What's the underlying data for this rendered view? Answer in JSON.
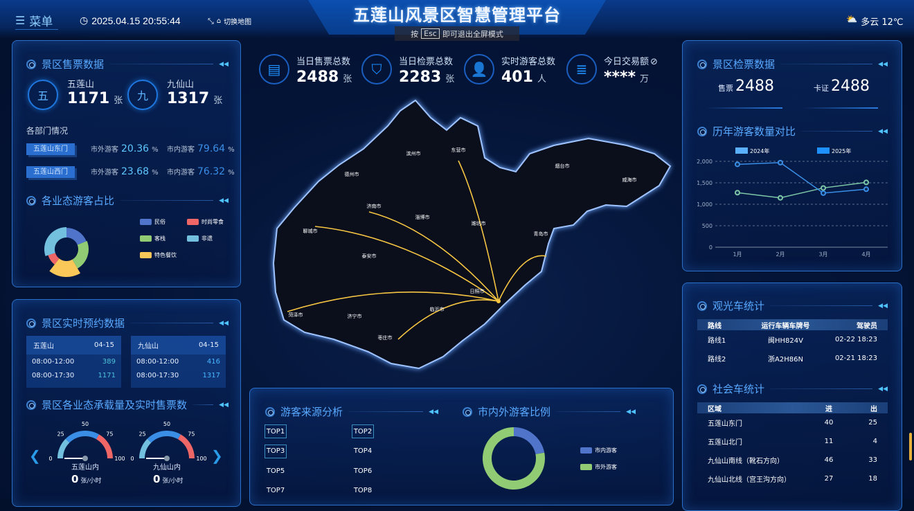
{
  "header": {
    "menu": "菜单",
    "datetime": "2025.04.15 20:55:44",
    "switch_map": "切换地图",
    "title": "五莲山风景区智慧管理平台",
    "esc_prefix": "按",
    "esc_key": "Esc",
    "esc_suffix": "即可退出全屏模式",
    "weather": "多云 12℃",
    "icons": [
      "menu-icon",
      "clock-icon",
      "shrink-icon",
      "map-icon",
      "cloudy-sun-icon"
    ]
  },
  "ticket_sales": {
    "title": "景区售票数据",
    "items": [
      {
        "badge": "五",
        "name": "五莲山",
        "value": "1171",
        "unit": "张"
      },
      {
        "badge": "九",
        "name": "九仙山",
        "value": "1317",
        "unit": "张"
      }
    ],
    "dept_title": "各部门情况",
    "depts": [
      {
        "name": "五莲山东门",
        "out_label": "市外游客",
        "out": "20.36",
        "in_label": "市内游客",
        "in": "79.64",
        "pct": "%"
      },
      {
        "name": "五莲山西门",
        "out_label": "市外游客",
        "out": "23.68",
        "in_label": "市内游客",
        "in": "76.32",
        "pct": "%"
      }
    ]
  },
  "business_share": {
    "title": "各业态游客占比",
    "chart_data": {
      "type": "pie",
      "rose": true,
      "series": [
        {
          "name": "民俗",
          "color": "#4f74c9"
        },
        {
          "name": "时尚零食",
          "color": "#ee6666"
        },
        {
          "name": "客栈",
          "color": "#91cc75"
        },
        {
          "name": "非遗",
          "color": "#73c0de"
        },
        {
          "name": "特色餐饮",
          "color": "#fac858"
        }
      ]
    }
  },
  "reservation": {
    "title": "景区实时预约数据",
    "tables": [
      {
        "name": "五莲山",
        "date": "04-15",
        "rows": [
          {
            "time": "08:00-12:00",
            "value": "389"
          },
          {
            "time": "08:00-17:30",
            "value": "1171"
          }
        ]
      },
      {
        "name": "九仙山",
        "date": "04-15",
        "rows": [
          {
            "time": "08:00-12:00",
            "value": "416"
          },
          {
            "time": "08:00-17:30",
            "value": "1317"
          }
        ]
      }
    ]
  },
  "capacity": {
    "title": "景区各业态承载量及实时售票数",
    "gauges": [
      {
        "name": "五莲山内",
        "value": "0",
        "unit": "张/小时"
      },
      {
        "name": "九仙山内",
        "value": "0",
        "unit": "张/小时"
      }
    ],
    "ticks": [
      "0",
      "25",
      "50",
      "75",
      "100"
    ],
    "colors": {
      "low": "#73c0de",
      "mid": "#3a8ee6",
      "high": "#ee6666"
    }
  },
  "kpis": [
    {
      "icon": "ticket-icon",
      "label": "当日售票总数",
      "value": "2488",
      "unit": "张"
    },
    {
      "icon": "gate-check-icon",
      "label": "当日检票总数",
      "value": "2283",
      "unit": "张"
    },
    {
      "icon": "user-icon",
      "label": "实时游客总数",
      "value": "401",
      "unit": "人"
    },
    {
      "icon": "database-icon",
      "label": "今日交易额",
      "value": "****",
      "unit": "万",
      "extra_icon": "eye-off-icon"
    }
  ],
  "map": {
    "cities": [
      "德州市",
      "滨州市",
      "东营市",
      "烟台市",
      "威海市",
      "济南市",
      "淄博市",
      "潍坊市",
      "聊城市",
      "青岛市",
      "泰安市",
      "日照市",
      "菏泽市",
      "济宁市",
      "临沂市",
      "枣庄市"
    ],
    "flow_target": "日照市",
    "flow_sources": [
      "东营市",
      "济南市",
      "聊城市",
      "菏泽市",
      "枣庄市",
      "青岛市"
    ],
    "line_color": "#f5c542"
  },
  "source": {
    "title": "游客来源分析",
    "tops": [
      "TOP1",
      "TOP2",
      "TOP3",
      "TOP4",
      "TOP5",
      "TOP6",
      "TOP7",
      "TOP8"
    ]
  },
  "city_ratio": {
    "title": "市内外游客比例",
    "chart_data": {
      "type": "pie",
      "series": [
        {
          "name": "市内游客",
          "value": 22,
          "color": "#4f74c9"
        },
        {
          "name": "市外游客",
          "value": 78,
          "color": "#91cc75"
        }
      ]
    }
  },
  "check_data": {
    "title": "景区检票数据",
    "items": [
      {
        "label": "售票",
        "value": "2488"
      },
      {
        "label": "卡证",
        "value": "2488"
      }
    ]
  },
  "yearly": {
    "title": "历年游客数量对比",
    "chart_data": {
      "type": "line",
      "categories": [
        "1月",
        "2月",
        "3月",
        "4月"
      ],
      "ylim": [
        0,
        2000
      ],
      "yticks": [
        "0",
        "500",
        "1,000",
        "1,500",
        "2,000"
      ],
      "grid": true,
      "legend": "top",
      "series": [
        {
          "name": "2024年",
          "values": [
            1270,
            1150,
            1380,
            1510
          ],
          "color": "#7ec8a8"
        },
        {
          "name": "2025年",
          "values": [
            1930,
            1970,
            1260,
            1350
          ],
          "color": "#3a8ee6"
        }
      ]
    }
  },
  "shuttle": {
    "title": "观光车统计",
    "headers": [
      "路线",
      "运行车辆车牌号",
      "驾驶员"
    ],
    "rows": [
      [
        "路线1",
        "闽HH824V",
        "02-22 18:23"
      ],
      [
        "路线2",
        "浙A2H86N",
        "02-21 18:23"
      ]
    ]
  },
  "social": {
    "title": "社会车统计",
    "headers": [
      "区域",
      "进",
      "出"
    ],
    "rows": [
      [
        "五莲山东门",
        "40",
        "25"
      ],
      [
        "五莲山北门",
        "11",
        "4"
      ],
      [
        "九仙山南线（靴石方向）",
        "46",
        "33"
      ],
      [
        "九仙山北线（宫王沟方向）",
        "27",
        "18"
      ]
    ]
  }
}
